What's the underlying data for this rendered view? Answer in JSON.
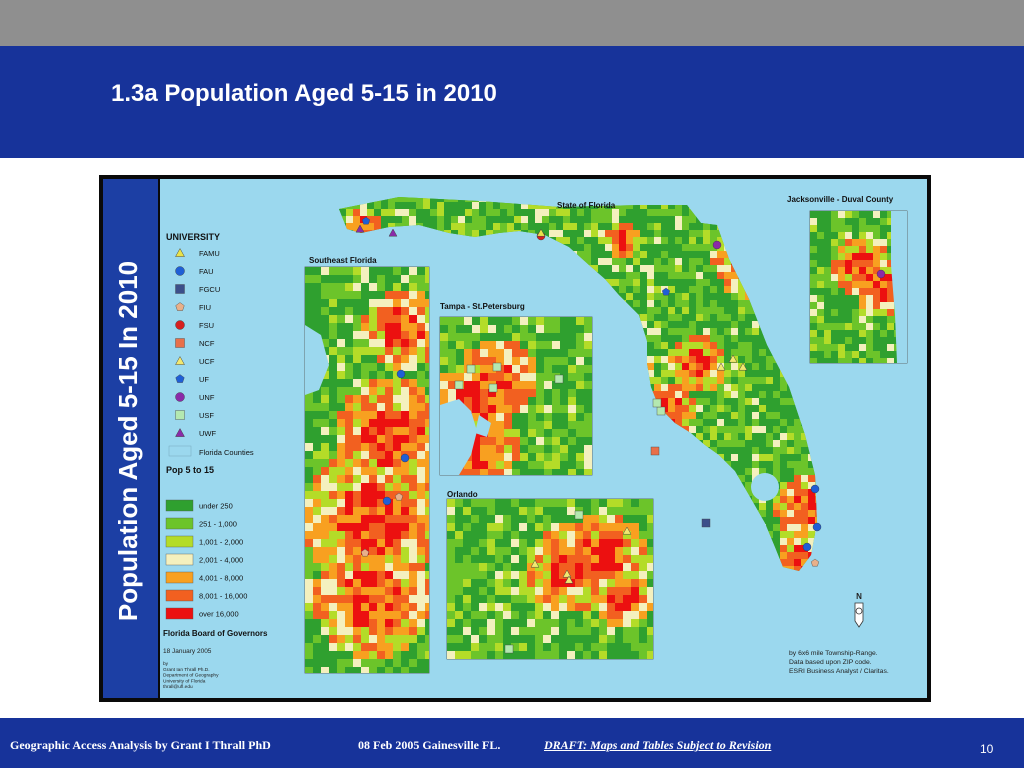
{
  "slide": {
    "title": "1.3a Population Aged 5-15 in 2010"
  },
  "map": {
    "vertical_title": "Population Aged  5-15 In 2010",
    "main_label": "State of Florida",
    "insets": {
      "southeast": "Southeast Florida",
      "tampa": "Tampa - St.Petersburg",
      "orlando": "Orlando",
      "jacksonville": "Jacksonville - Duval County"
    },
    "legend": {
      "university_heading": "UNIVERSITY",
      "universities": [
        {
          "label": "FAMU",
          "shape": "triangle",
          "color": "#e8e24a"
        },
        {
          "label": "FAU",
          "shape": "circle",
          "color": "#1f5fd6"
        },
        {
          "label": "FGCU",
          "shape": "square",
          "color": "#3c4f8a"
        },
        {
          "label": "FIU",
          "shape": "pentagon",
          "color": "#e8b08a"
        },
        {
          "label": "FSU",
          "shape": "circle",
          "color": "#d62020"
        },
        {
          "label": "NCF",
          "shape": "square",
          "color": "#e8704a"
        },
        {
          "label": "UCF",
          "shape": "triangle",
          "color": "#f2e870"
        },
        {
          "label": "UF",
          "shape": "pentagon",
          "color": "#1f5fd6"
        },
        {
          "label": "UNF",
          "shape": "circle",
          "color": "#8a2aa8"
        },
        {
          "label": "USF",
          "shape": "square",
          "color": "#b4e8b0"
        },
        {
          "label": "UWF",
          "shape": "triangle",
          "color": "#8a2aa8"
        }
      ],
      "counties_label": "Florida Counties",
      "pop_heading": "Pop 5 to 15",
      "classes": [
        {
          "label": "under 250",
          "color": "#2fa02f"
        },
        {
          "label": "251 - 1,000",
          "color": "#6cc42a"
        },
        {
          "label": "1,001 - 2,000",
          "color": "#b4dc28"
        },
        {
          "label": "2,001 - 4,000",
          "color": "#f4f0be"
        },
        {
          "label": "4,001 - 8,000",
          "color": "#f8a020"
        },
        {
          "label": "8,001 - 16,000",
          "color": "#f26020"
        },
        {
          "label": "over 16,000",
          "color": "#ec1010"
        }
      ],
      "board": "Florida Board of Governors",
      "date": "18 January 2005",
      "credits": [
        "by",
        "Grant Ian Thrall Ph.D.",
        "Department of Geography",
        "University of Florida",
        "thrall@ufl.edu"
      ]
    },
    "source_note": [
      "by 6x6 mile Township-Range.",
      "Data based upon ZIP code.",
      "ESRI Business Analyst / Claritas."
    ],
    "north_label": "N"
  },
  "footer": {
    "author": "Geographic Access Analysis by Grant I Thrall PhD",
    "date_place": "08 Feb 2005  Gainesville FL.",
    "draft": "DRAFT:  Maps and Tables Subject to Revision",
    "page_number": "10"
  },
  "colors": {
    "slide_blue": "#17339a",
    "top_gray": "#8f8f8f",
    "water": "#9bd8ee"
  }
}
